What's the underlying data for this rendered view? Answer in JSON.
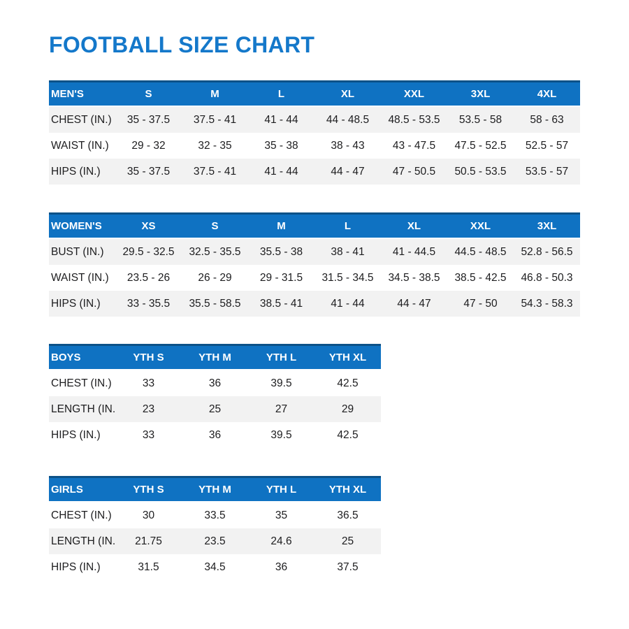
{
  "title": "FOOTBALL SIZE CHART",
  "colors": {
    "accent": "#1478ca",
    "header_bg": "#0f72c2",
    "header_edge": "#0d5288",
    "row_alt": "#f2f2f2",
    "text": "#1d1d1f"
  },
  "tables": [
    {
      "id": "mens",
      "header": [
        "MEN'S",
        "S",
        "M",
        "L",
        "XL",
        "XXL",
        "3XL",
        "4XL"
      ],
      "rows": [
        {
          "label": "CHEST (IN.)",
          "shaded": true,
          "values": [
            "35 - 37.5",
            "37.5 - 41",
            "41 - 44",
            "44 - 48.5",
            "48.5 - 53.5",
            "53.5 - 58",
            "58 - 63"
          ]
        },
        {
          "label": "WAIST (IN.)",
          "shaded": false,
          "values": [
            "29 - 32",
            "32 - 35",
            "35 - 38",
            "38 - 43",
            "43 - 47.5",
            "47.5 - 52.5",
            "52.5 - 57"
          ]
        },
        {
          "label": "HIPS (IN.)",
          "shaded": true,
          "values": [
            "35 - 37.5",
            "37.5 - 41",
            "41 - 44",
            "44 - 47",
            "47 - 50.5",
            "50.5 - 53.5",
            "53.5 - 57"
          ]
        }
      ]
    },
    {
      "id": "womens",
      "header": [
        "WOMEN'S",
        "XS",
        "S",
        "M",
        "L",
        "XL",
        "XXL",
        "3XL"
      ],
      "rows": [
        {
          "label": "BUST (IN.)",
          "shaded": true,
          "values": [
            "29.5 - 32.5",
            "32.5 - 35.5",
            "35.5 - 38",
            "38 - 41",
            "41 - 44.5",
            "44.5 - 48.5",
            "52.8 - 56.5"
          ]
        },
        {
          "label": "WAIST (IN.)",
          "shaded": false,
          "values": [
            "23.5 - 26",
            "26 - 29",
            "29 - 31.5",
            "31.5 - 34.5",
            "34.5 - 38.5",
            "38.5 - 42.5",
            "46.8 - 50.3"
          ]
        },
        {
          "label": "HIPS (IN.)",
          "shaded": true,
          "values": [
            "33 - 35.5",
            "35.5 - 58.5",
            "38.5 - 41",
            "41 - 44",
            "44 - 47",
            "47 - 50",
            "54.3 - 58.3"
          ]
        }
      ]
    },
    {
      "id": "boys",
      "header": [
        "BOYS",
        "YTH S",
        "YTH M",
        "YTH L",
        "YTH XL"
      ],
      "rows": [
        {
          "label": "CHEST (IN.)",
          "shaded": false,
          "values": [
            "33",
            "36",
            "39.5",
            "42.5"
          ]
        },
        {
          "label": "LENGTH (IN.)",
          "shaded": true,
          "values": [
            "23",
            "25",
            "27",
            "29"
          ]
        },
        {
          "label": "HIPS (IN.)",
          "shaded": false,
          "values": [
            "33",
            "36",
            "39.5",
            "42.5"
          ]
        }
      ]
    },
    {
      "id": "girls",
      "header": [
        "GIRLS",
        "YTH S",
        "YTH M",
        "YTH L",
        "YTH XL"
      ],
      "rows": [
        {
          "label": "CHEST (IN.)",
          "shaded": false,
          "values": [
            "30",
            "33.5",
            "35",
            "36.5"
          ]
        },
        {
          "label": "LENGTH (IN.)",
          "shaded": true,
          "values": [
            "21.75",
            "23.5",
            "24.6",
            "25"
          ]
        },
        {
          "label": "HIPS (IN.)",
          "shaded": false,
          "values": [
            "31.5",
            "34.5",
            "36",
            "37.5"
          ]
        }
      ]
    }
  ]
}
